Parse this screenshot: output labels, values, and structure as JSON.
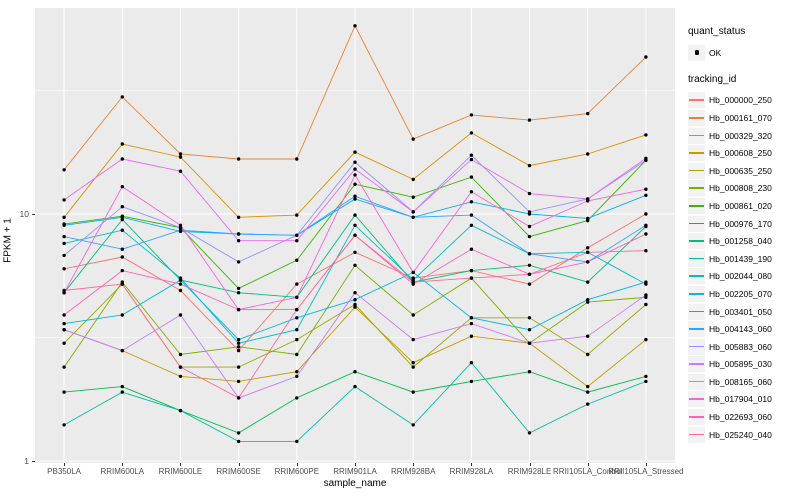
{
  "figure": {
    "background": "#FFFFFF",
    "panel_background": "#EBEBEB",
    "gridline_color": "#FFFFFF",
    "axis_text_color": "#4D4D4D",
    "axis_title_color": "#000000",
    "point_color": "#000000"
  },
  "legend": {
    "quant_title": "quant_status",
    "quant_items": [
      {
        "label": "OK",
        "marker": "black-point"
      }
    ],
    "tracking_title": "tracking_id"
  },
  "chart_data": {
    "type": "line",
    "title": "",
    "xlabel": "sample_name",
    "ylabel": "FPKM + 1",
    "y_scale": "log10",
    "y_ticks": [
      1,
      10
    ],
    "y_minor_gridlines": [
      3.1623,
      31.623
    ],
    "ylim": [
      0.99,
      68
    ],
    "grid": "on",
    "legend_position": "right",
    "point_marker": "black-dot (quant_status = OK)",
    "categories": [
      "PB350LA",
      "RRIM600LA",
      "RRIM600LE",
      "RRIM600SE",
      "RRIM600PE",
      "RRIM901LA",
      "RRIM928BA",
      "RRIM928LA",
      "RRIM928LE",
      "RRII105LA_Control",
      "RRII105LA_Stressed"
    ],
    "series": [
      {
        "name": "Hb_000000_250",
        "color": "#F8766D",
        "values": [
          6.0,
          6.7,
          4.9,
          2.8,
          5.2,
          7.0,
          5.5,
          5.9,
          5.2,
          7.3,
          10.0
        ]
      },
      {
        "name": "Hb_000161_070",
        "color": "#EA8331",
        "values": [
          15.1,
          29.8,
          17.5,
          16.7,
          16.7,
          57.8,
          20.1,
          25.2,
          24.0,
          25.5,
          43.2
        ]
      },
      {
        "name": "Hb_000329_320",
        "color": "#D89000",
        "values": [
          9.7,
          19.2,
          17.0,
          9.7,
          9.9,
          17.8,
          13.8,
          21.3,
          15.7,
          17.5,
          20.9
        ]
      },
      {
        "name": "Hb_000608_250",
        "color": "#C09B00",
        "values": [
          3.4,
          2.8,
          2.2,
          2.1,
          2.3,
          4.2,
          2.5,
          3.2,
          3.0,
          2.0,
          3.1
        ]
      },
      {
        "name": "Hb_000635_250",
        "color": "#A3A500",
        "values": [
          3.0,
          5.2,
          2.4,
          2.4,
          3.1,
          4.3,
          2.4,
          3.8,
          3.8,
          2.7,
          4.3
        ]
      },
      {
        "name": "Hb_000808_230",
        "color": "#7CAE00",
        "values": [
          2.4,
          5.3,
          2.7,
          2.9,
          2.7,
          6.2,
          3.9,
          5.5,
          3.0,
          4.4,
          4.6
        ]
      },
      {
        "name": "Hb_000861_020",
        "color": "#39B600",
        "values": [
          9.1,
          9.8,
          8.8,
          5.0,
          6.5,
          13.2,
          11.7,
          14.1,
          8.1,
          9.4,
          16.5
        ]
      },
      {
        "name": "Hb_000976_170",
        "color": "#00BB4E",
        "values": [
          1.9,
          2.0,
          1.6,
          1.3,
          1.8,
          2.3,
          1.9,
          2.1,
          2.3,
          1.9,
          2.2
        ]
      },
      {
        "name": "Hb_001258_040",
        "color": "#00BF7D",
        "values": [
          4.8,
          9.5,
          5.4,
          4.8,
          4.6,
          9.9,
          5.3,
          5.9,
          6.2,
          5.3,
          8.9
        ]
      },
      {
        "name": "Hb_001439_190",
        "color": "#00C1A3",
        "values": [
          1.4,
          1.9,
          1.6,
          1.2,
          1.2,
          2.0,
          1.4,
          2.5,
          1.3,
          1.7,
          2.1
        ]
      },
      {
        "name": "Hb_002044_080",
        "color": "#00BFC4",
        "values": [
          7.6,
          8.6,
          5.5,
          3.0,
          3.4,
          9.0,
          5.4,
          9.0,
          6.9,
          7.0,
          5.2
        ]
      },
      {
        "name": "Hb_002205_070",
        "color": "#00BAE0",
        "values": [
          3.6,
          3.9,
          5.4,
          3.1,
          3.8,
          4.5,
          5.8,
          3.8,
          3.4,
          4.5,
          5.3
        ]
      },
      {
        "name": "Hb_003401_050",
        "color": "#00B0F6",
        "values": [
          9.0,
          9.7,
          8.5,
          8.3,
          8.2,
          11.5,
          9.7,
          11.2,
          10.0,
          9.6,
          11.9
        ]
      },
      {
        "name": "Hb_004143_060",
        "color": "#35A2FF",
        "values": [
          8.1,
          7.2,
          8.6,
          8.3,
          8.2,
          11.8,
          9.7,
          9.9,
          6.9,
          6.4,
          9.0
        ]
      },
      {
        "name": "Hb_005883_060",
        "color": "#9590FF",
        "values": [
          6.8,
          10.7,
          8.8,
          6.4,
          8.2,
          16.2,
          10.2,
          17.3,
          10.2,
          11.5,
          16.5
        ]
      },
      {
        "name": "Hb_005895_030",
        "color": "#C77CFF",
        "values": [
          3.4,
          2.8,
          3.9,
          1.8,
          2.2,
          4.8,
          3.1,
          3.6,
          3.0,
          3.2,
          4.7
        ]
      },
      {
        "name": "Hb_008165_060",
        "color": "#E76BF3",
        "values": [
          11.4,
          16.7,
          14.9,
          7.8,
          7.8,
          15.2,
          10.2,
          16.6,
          12.1,
          11.5,
          16.8
        ]
      },
      {
        "name": "Hb_017904_010",
        "color": "#FA62DB",
        "values": [
          4.8,
          12.9,
          9.0,
          4.1,
          4.6,
          14.4,
          5.8,
          12.3,
          8.9,
          11.3,
          12.6
        ]
      },
      {
        "name": "Hb_022693_060",
        "color": "#FF62BC",
        "values": [
          3.9,
          5.9,
          5.2,
          4.1,
          4.1,
          8.2,
          5.2,
          7.2,
          5.7,
          6.4,
          8.3
        ]
      },
      {
        "name": "Hb_025240_040",
        "color": "#FF6A98",
        "values": [
          4.9,
          5.2,
          2.4,
          1.8,
          4.1,
          8.2,
          5.3,
          5.5,
          5.7,
          7.0,
          7.1
        ]
      }
    ]
  }
}
